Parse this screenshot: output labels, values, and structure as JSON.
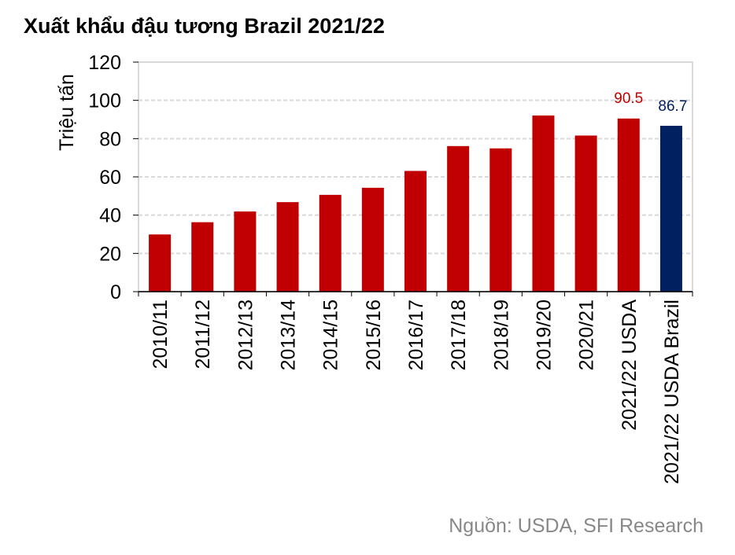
{
  "chart_data": {
    "type": "bar",
    "title": "Xuất khẩu đậu tương Brazil 2021/22",
    "ylabel": "Triệu tấn",
    "xlabel": "",
    "ylim": [
      0,
      120
    ],
    "yticks": [
      0,
      20,
      40,
      60,
      80,
      100,
      120
    ],
    "grid": true,
    "categories": [
      "2010/11",
      "2011/12",
      "2012/13",
      "2013/14",
      "2014/15",
      "2015/16",
      "2016/17",
      "2017/18",
      "2018/19",
      "2019/20",
      "2020/21",
      "2021/22 USDA",
      "2021/22 USDA Brazil"
    ],
    "values": [
      29.9,
      36.3,
      41.9,
      46.8,
      50.6,
      54.3,
      63.1,
      76.1,
      74.9,
      92.1,
      81.6,
      90.5,
      86.7
    ],
    "bar_colors": [
      "#c00000",
      "#c00000",
      "#c00000",
      "#c00000",
      "#c00000",
      "#c00000",
      "#c00000",
      "#c00000",
      "#c00000",
      "#c00000",
      "#c00000",
      "#c00000",
      "#002060"
    ],
    "data_labels": [
      {
        "index": 11,
        "text": "90.5",
        "color": "#c00000"
      },
      {
        "index": 12,
        "text": "86.7",
        "color": "#002060"
      }
    ]
  },
  "source": "Nguồn: USDA, SFI Research"
}
